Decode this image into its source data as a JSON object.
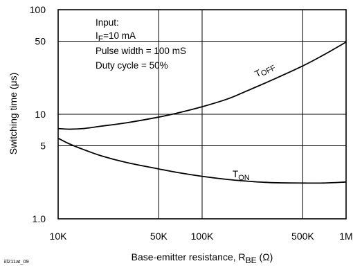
{
  "chart_data": {
    "type": "line",
    "xscale": "log",
    "yscale": "log",
    "xlim": [
      10000,
      1000000
    ],
    "ylim": [
      1,
      100
    ],
    "xticks": [
      {
        "value": 10000,
        "label": "10K"
      },
      {
        "value": 50000,
        "label": "50K"
      },
      {
        "value": 100000,
        "label": "100K"
      },
      {
        "value": 500000,
        "label": "500K"
      },
      {
        "value": 1000000,
        "label": "1M"
      }
    ],
    "yticks": [
      {
        "value": 1,
        "label": "1.0"
      },
      {
        "value": 5,
        "label": "5"
      },
      {
        "value": 10,
        "label": "10"
      },
      {
        "value": 50,
        "label": "50"
      },
      {
        "value": 100,
        "label": "100"
      }
    ],
    "grid": true,
    "xlabel": {
      "main": "Base-emitter resistance, R",
      "sub": "BE",
      "unit": " (Ω)"
    },
    "ylabel": "Switching time (μs)",
    "annotation": {
      "line1": "Input:",
      "line2_main": "I",
      "line2_sub": "F",
      "line2_rest": "=10 mA",
      "line3": "Pulse width = 100 mS",
      "line4": "Duty cycle = 50%"
    },
    "series": [
      {
        "name": "T_OFF",
        "label_main": "T",
        "label_sub": "OFF",
        "x": [
          10000,
          12000,
          15000,
          20000,
          30000,
          50000,
          70000,
          100000,
          150000,
          200000,
          300000,
          500000,
          700000,
          1000000
        ],
        "y": [
          7.3,
          7.2,
          7.3,
          7.7,
          8.3,
          9.4,
          10.4,
          11.8,
          14.0,
          16.5,
          21.0,
          29.0,
          37.0,
          49.0
        ]
      },
      {
        "name": "T_ON",
        "label_main": "T",
        "label_sub": "ON",
        "x": [
          10000,
          12000,
          15000,
          20000,
          30000,
          50000,
          70000,
          100000,
          150000,
          200000,
          300000,
          500000,
          700000,
          1000000
        ],
        "y": [
          5.9,
          5.2,
          4.6,
          4.0,
          3.45,
          3.0,
          2.75,
          2.55,
          2.38,
          2.3,
          2.22,
          2.2,
          2.2,
          2.25
        ]
      }
    ],
    "footnote": "iil211at_09"
  }
}
